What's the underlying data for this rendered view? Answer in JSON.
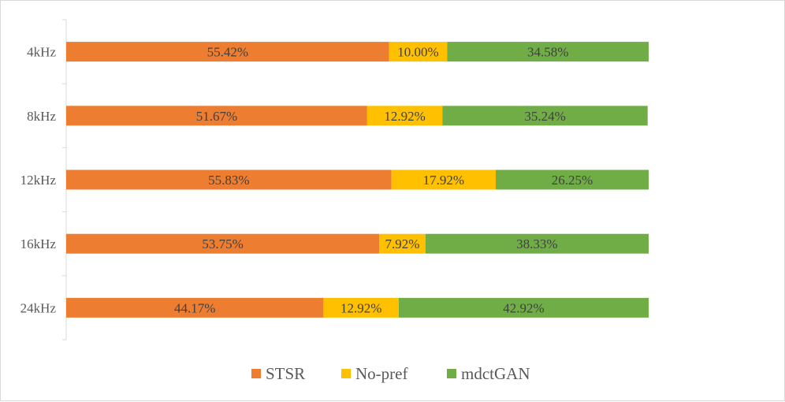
{
  "chart_data": {
    "type": "bar",
    "orientation": "horizontal",
    "stacked": true,
    "percent_stacked": true,
    "categories": [
      "4kHz",
      "8kHz",
      "12kHz",
      "16kHz",
      "24kHz"
    ],
    "series": [
      {
        "name": "STSR",
        "color": "#ED7D31",
        "values": [
          55.42,
          51.67,
          55.83,
          53.75,
          44.17
        ],
        "labels": [
          "55.42%",
          "51.67%",
          "55.83%",
          "53.75%",
          "44.17%"
        ]
      },
      {
        "name": "No-pref",
        "color": "#FFC000",
        "values": [
          10.0,
          12.92,
          17.92,
          7.92,
          12.92
        ],
        "labels": [
          "10.00%",
          "12.92%",
          "17.92%",
          "7.92%",
          "12.92%"
        ]
      },
      {
        "name": "mdctGAN",
        "color": "#70AD47",
        "values": [
          34.58,
          35.24,
          26.25,
          38.33,
          42.92
        ],
        "labels": [
          "34.58%",
          "35.24%",
          "26.25%",
          "38.33%",
          "42.92%"
        ]
      }
    ],
    "xlim": [
      0,
      100
    ],
    "grid": false,
    "legend_position": "bottom"
  }
}
